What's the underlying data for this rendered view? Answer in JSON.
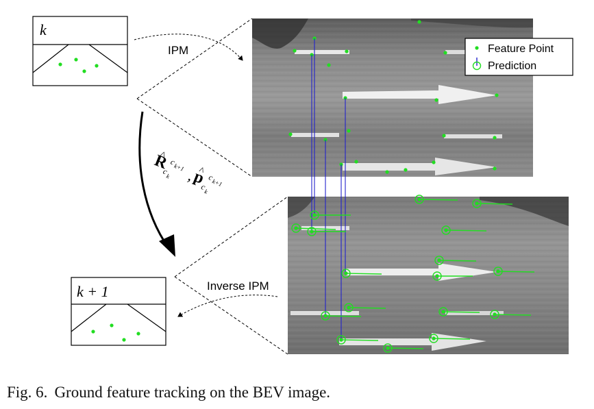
{
  "figure": {
    "frame_top_label": "k",
    "frame_bottom_label": "k + 1",
    "ipm_label": "IPM",
    "inverse_ipm_label": "Inverse IPM",
    "transform_label": "R̂, p̂ (c_k → c_{k+1})",
    "legend": {
      "feature_point": "Feature Point",
      "prediction": "Prediction"
    },
    "colors": {
      "feature": "#22dd22",
      "track_line": "#2222cc",
      "arrow": "#000000"
    }
  },
  "caption": {
    "label": "Fig. 6.",
    "text": "Ground feature tracking on the BEV image."
  }
}
